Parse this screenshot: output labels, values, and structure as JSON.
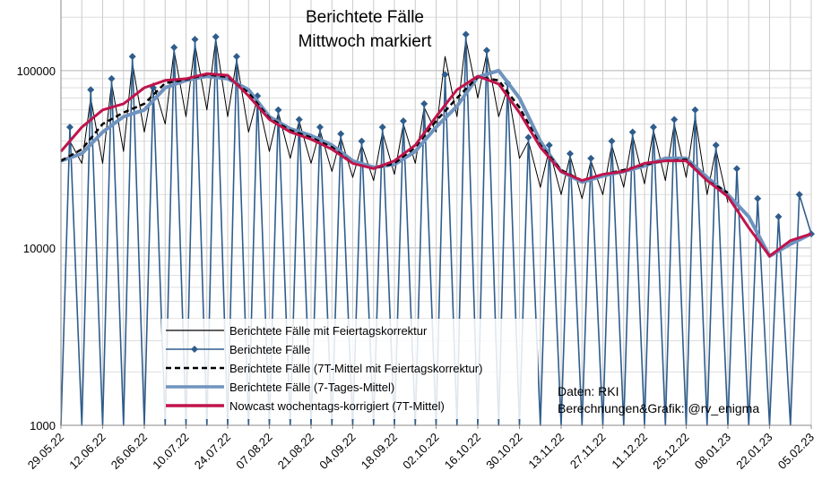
{
  "chart_data": {
    "type": "line",
    "title": [
      "Berichtete Fälle",
      "Mittwoch markiert"
    ],
    "yscale": "log",
    "ylim": [
      1000,
      250000
    ],
    "yticks": [
      {
        "value": 1000,
        "label": "1000"
      },
      {
        "value": 10000,
        "label": "10000"
      },
      {
        "value": 100000,
        "label": "100000"
      }
    ],
    "xlim": [
      "2022-05-29",
      "2023-02-05"
    ],
    "xticks": [
      "29.05.22",
      "12.06.22",
      "26.06.22",
      "10.07.22",
      "24.07.22",
      "07.08.22",
      "21.08.22",
      "04.09.22",
      "18.09.22",
      "02.10.22",
      "16.10.22",
      "30.10.22",
      "13.11.22",
      "27.11.22",
      "11.12.22",
      "25.12.22",
      "08.01.23",
      "22.01.23",
      "05.02.23"
    ],
    "grid": true,
    "legend_position": "bottom-center",
    "legend": [
      {
        "label": "Berichtete Fälle mit Feiertagskorrektur",
        "color": "#000000",
        "style": "thin-line"
      },
      {
        "label": "Berichtete Fälle",
        "color": "#2f5d8c",
        "style": "line-diamond"
      },
      {
        "label": "Berichtete Fälle (7T-Mittel mit Feiertagskorrektur)",
        "color": "#000000",
        "style": "dashed"
      },
      {
        "label": "Berichtete Fälle (7-Tages-Mittel)",
        "color": "#6f93bf",
        "style": "thick-line"
      },
      {
        "label": "Nowcast wochentags-korrigiert (7T-Mittel)",
        "color": "#c0144c",
        "style": "thick-line"
      }
    ],
    "annotations": [
      "Daten: RKI",
      "Berechnungen&Grafik: @rv_enigma"
    ],
    "series": [
      {
        "name": "Nowcast wochentags-korrigiert (7T-Mittel)",
        "color": "#c0144c",
        "x": [
          "2022-05-29",
          "2022-06-05",
          "2022-06-12",
          "2022-06-19",
          "2022-06-26",
          "2022-07-03",
          "2022-07-10",
          "2022-07-17",
          "2022-07-24",
          "2022-07-31",
          "2022-08-07",
          "2022-08-14",
          "2022-08-21",
          "2022-08-28",
          "2022-09-04",
          "2022-09-11",
          "2022-09-18",
          "2022-09-25",
          "2022-10-02",
          "2022-10-09",
          "2022-10-16",
          "2022-10-23",
          "2022-10-30",
          "2022-11-06",
          "2022-11-13",
          "2022-11-20",
          "2022-11-27",
          "2022-12-04",
          "2022-12-11",
          "2022-12-18",
          "2022-12-25",
          "2023-01-01",
          "2023-01-08",
          "2023-01-15",
          "2023-01-22",
          "2023-01-29",
          "2023-02-05"
        ],
        "y": [
          35000,
          48000,
          60000,
          65000,
          80000,
          88000,
          90000,
          96000,
          94000,
          72000,
          53000,
          45000,
          41000,
          36000,
          30000,
          28000,
          31000,
          38000,
          55000,
          78000,
          93000,
          84000,
          58000,
          37000,
          27000,
          24000,
          26000,
          27000,
          30000,
          31000,
          31000,
          24000,
          19500,
          13000,
          9000,
          11000,
          12000
        ]
      },
      {
        "name": "Berichtete Fälle (7-Tages-Mittel)",
        "color": "#6f93bf",
        "x": [
          "2022-05-29",
          "2022-06-05",
          "2022-06-12",
          "2022-06-19",
          "2022-06-26",
          "2022-07-03",
          "2022-07-10",
          "2022-07-17",
          "2022-07-24",
          "2022-07-31",
          "2022-08-07",
          "2022-08-14",
          "2022-08-21",
          "2022-08-28",
          "2022-09-04",
          "2022-09-11",
          "2022-09-18",
          "2022-09-25",
          "2022-10-02",
          "2022-10-09",
          "2022-10-16",
          "2022-10-23",
          "2022-10-30",
          "2022-11-06",
          "2022-11-13",
          "2022-11-20",
          "2022-11-27",
          "2022-12-04",
          "2022-12-11",
          "2022-12-18",
          "2022-12-25",
          "2023-01-01",
          "2023-01-08",
          "2023-01-15",
          "2023-01-22",
          "2023-01-29",
          "2023-02-05"
        ],
        "y": [
          31000,
          34000,
          45000,
          55000,
          60000,
          80000,
          88000,
          93000,
          90000,
          78000,
          55000,
          47000,
          43000,
          38000,
          31000,
          28500,
          29500,
          35000,
          48000,
          63000,
          92000,
          100000,
          70000,
          40000,
          27000,
          23500,
          25500,
          27000,
          29000,
          32000,
          32000,
          25000,
          20000,
          15000,
          9000,
          10500,
          12000
        ]
      },
      {
        "name": "Berichtete Fälle (7T-Mittel mit Feiertagskorrektur)",
        "color": "#000000",
        "x": [
          "2022-05-29",
          "2022-06-05",
          "2022-06-12",
          "2022-06-19",
          "2022-06-26",
          "2022-07-03",
          "2022-07-10",
          "2022-07-17",
          "2022-07-24",
          "2022-07-31",
          "2022-08-07",
          "2022-08-14",
          "2022-08-21",
          "2022-08-28",
          "2022-09-04",
          "2022-09-11",
          "2022-09-18",
          "2022-09-25",
          "2022-10-02",
          "2022-10-09",
          "2022-10-16",
          "2022-10-23",
          "2022-10-30",
          "2022-11-06",
          "2022-11-13",
          "2022-11-20",
          "2022-11-27",
          "2022-12-04",
          "2022-12-11",
          "2022-12-18",
          "2022-12-25",
          "2023-01-01",
          "2023-01-08"
        ],
        "y": [
          31000,
          36000,
          50000,
          58000,
          65000,
          85000,
          89000,
          95000,
          92000,
          75000,
          54000,
          46000,
          42000,
          37000,
          30000,
          28000,
          30000,
          37000,
          52000,
          70000,
          92000,
          88000,
          62000,
          38000,
          27500,
          24000,
          26000,
          27500,
          29500,
          31000,
          31500,
          24000,
          20500
        ]
      },
      {
        "name": "Berichtete Fälle",
        "color": "#2f5d8c",
        "x": [
          "2022-05-29",
          "2022-06-01",
          "2022-06-05",
          "2022-06-08",
          "2022-06-12",
          "2022-06-15",
          "2022-06-19",
          "2022-06-22",
          "2022-06-26",
          "2022-06-29",
          "2022-07-03",
          "2022-07-06",
          "2022-07-10",
          "2022-07-13",
          "2022-07-17",
          "2022-07-20",
          "2022-07-24",
          "2022-07-27",
          "2022-07-31",
          "2022-08-03",
          "2022-08-07",
          "2022-08-10",
          "2022-08-14",
          "2022-08-17",
          "2022-08-21",
          "2022-08-24",
          "2022-08-28",
          "2022-08-31",
          "2022-09-04",
          "2022-09-07",
          "2022-09-11",
          "2022-09-14",
          "2022-09-18",
          "2022-09-21",
          "2022-09-25",
          "2022-09-28",
          "2022-10-02",
          "2022-10-05",
          "2022-10-09",
          "2022-10-12",
          "2022-10-16",
          "2022-10-19",
          "2022-10-23",
          "2022-10-26",
          "2022-10-30",
          "2022-11-02",
          "2022-11-06",
          "2022-11-09",
          "2022-11-13",
          "2022-11-16",
          "2022-11-20",
          "2022-11-23",
          "2022-11-27",
          "2022-11-30",
          "2022-12-04",
          "2022-12-07",
          "2022-12-11",
          "2022-12-14",
          "2022-12-18",
          "2022-12-21",
          "2022-12-25",
          "2022-12-28",
          "2023-01-01",
          "2023-01-04",
          "2023-01-08",
          "2023-01-11",
          "2023-01-15",
          "2023-01-18",
          "2023-01-22",
          "2023-01-25",
          "2023-01-29",
          "2023-02-01",
          "2023-02-05"
        ],
        "y": [
          1000,
          48000,
          1000,
          78000,
          1000,
          90000,
          1000,
          120000,
          1000,
          80000,
          1000,
          135000,
          1000,
          150000,
          1000,
          155000,
          1000,
          120000,
          1000,
          72000,
          1000,
          60000,
          1000,
          53000,
          1000,
          48000,
          1000,
          44000,
          1000,
          40000,
          1000,
          48000,
          1000,
          52000,
          1000,
          65000,
          1000,
          95000,
          1000,
          160000,
          1000,
          130000,
          1000,
          85000,
          1000,
          42000,
          1000,
          38000,
          1000,
          34000,
          1000,
          32000,
          1000,
          40000,
          1000,
          45000,
          1000,
          48000,
          1000,
          53000,
          1000,
          60000,
          1000,
          38000,
          1000,
          28000,
          1000,
          19000,
          1000,
          15000,
          1000,
          20000,
          12000
        ]
      },
      {
        "name": "Berichtete Fälle mit Feiertagskorrektur",
        "color": "#000000",
        "x": [
          "2022-06-01",
          "2022-06-05",
          "2022-06-08",
          "2022-06-12",
          "2022-06-15",
          "2022-06-19",
          "2022-06-22",
          "2022-06-26",
          "2022-06-29",
          "2022-07-03",
          "2022-07-06",
          "2022-07-10",
          "2022-07-13",
          "2022-07-17",
          "2022-07-20",
          "2022-07-24",
          "2022-07-27",
          "2022-07-31",
          "2022-08-03",
          "2022-08-07",
          "2022-08-10",
          "2022-08-14",
          "2022-08-17",
          "2022-08-21",
          "2022-08-24",
          "2022-08-28",
          "2022-08-31",
          "2022-09-04",
          "2022-09-07",
          "2022-09-11",
          "2022-09-14",
          "2022-09-18",
          "2022-09-21",
          "2022-09-25",
          "2022-09-28",
          "2022-10-02",
          "2022-10-05",
          "2022-10-09",
          "2022-10-12",
          "2022-10-16",
          "2022-10-19",
          "2022-10-23",
          "2022-10-26",
          "2022-10-30",
          "2022-11-02",
          "2022-11-06",
          "2022-11-09",
          "2022-11-13",
          "2022-11-16",
          "2022-11-20",
          "2022-11-23",
          "2022-11-27",
          "2022-11-30",
          "2022-12-04",
          "2022-12-07",
          "2022-12-11",
          "2022-12-14",
          "2022-12-18",
          "2022-12-21",
          "2022-12-25",
          "2022-12-28",
          "2023-01-01",
          "2023-01-04",
          "2023-01-08"
        ],
        "y": [
          40000,
          30000,
          70000,
          30000,
          85000,
          35000,
          110000,
          45000,
          85000,
          50000,
          130000,
          55000,
          140000,
          60000,
          150000,
          55000,
          115000,
          45000,
          70000,
          35000,
          58000,
          32000,
          52000,
          30000,
          46000,
          27000,
          42000,
          25000,
          38000,
          24000,
          45000,
          26000,
          50000,
          30000,
          62000,
          45000,
          120000,
          55000,
          150000,
          70000,
          125000,
          55000,
          80000,
          32000,
          40000,
          22000,
          36000,
          20000,
          33000,
          19000,
          31000,
          20000,
          38000,
          22000,
          43000,
          23000,
          46000,
          24000,
          50000,
          25000,
          55000,
          20000,
          36000,
          18000
        ]
      }
    ]
  }
}
